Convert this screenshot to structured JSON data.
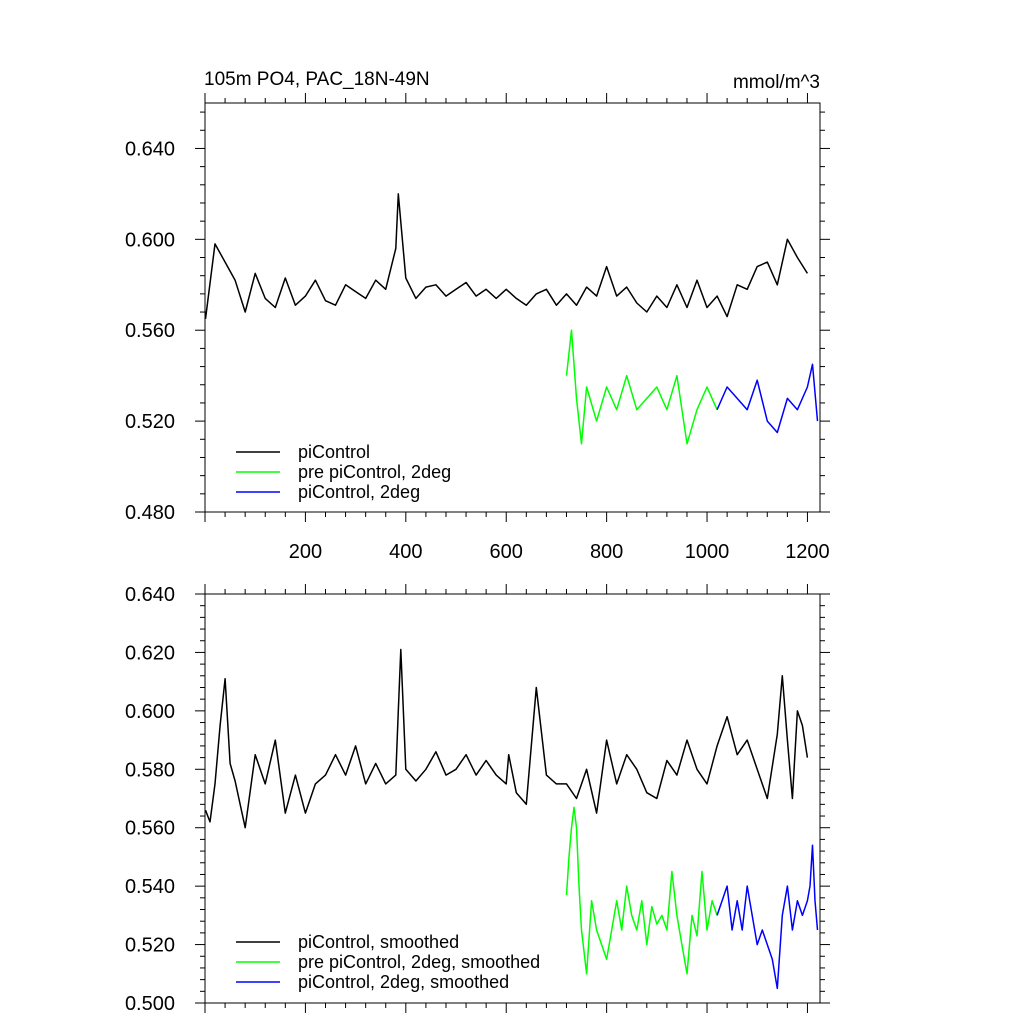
{
  "header": {
    "title": "105m PO4, PAC_18N-49N",
    "units": "mmol/m^3"
  },
  "chart_data": [
    {
      "type": "line",
      "xlim": [
        0,
        1225
      ],
      "ylim": [
        0.48,
        0.66
      ],
      "x_ticks": [
        200,
        400,
        600,
        800,
        1000,
        1200
      ],
      "x_tick_labels": [
        "200",
        "400",
        "600",
        "800",
        "1000",
        "1200"
      ],
      "y_ticks": [
        0.48,
        0.52,
        0.56,
        0.6,
        0.64
      ],
      "y_tick_labels": [
        "0.480",
        "0.520",
        "0.560",
        "0.600",
        "0.640"
      ],
      "legend_position": "bottom-left",
      "series": [
        {
          "name": "piControl",
          "color": "#000000",
          "x": [
            1,
            20,
            40,
            60,
            80,
            100,
            120,
            140,
            160,
            180,
            200,
            220,
            240,
            260,
            280,
            300,
            320,
            340,
            360,
            380,
            385,
            400,
            420,
            440,
            460,
            480,
            500,
            520,
            540,
            560,
            580,
            600,
            620,
            640,
            660,
            680,
            700,
            720,
            740,
            760,
            780,
            800,
            820,
            840,
            860,
            880,
            900,
            920,
            940,
            960,
            980,
            1000,
            1020,
            1040,
            1060,
            1080,
            1100,
            1120,
            1140,
            1160,
            1180,
            1200
          ],
          "y": [
            0.565,
            0.598,
            0.59,
            0.582,
            0.568,
            0.585,
            0.574,
            0.57,
            0.583,
            0.571,
            0.575,
            0.582,
            0.573,
            0.571,
            0.58,
            0.577,
            0.574,
            0.582,
            0.578,
            0.596,
            0.62,
            0.583,
            0.574,
            0.579,
            0.58,
            0.575,
            0.578,
            0.581,
            0.575,
            0.578,
            0.574,
            0.578,
            0.574,
            0.571,
            0.576,
            0.578,
            0.571,
            0.576,
            0.571,
            0.579,
            0.575,
            0.588,
            0.575,
            0.579,
            0.572,
            0.568,
            0.575,
            0.57,
            0.58,
            0.57,
            0.582,
            0.57,
            0.575,
            0.566,
            0.58,
            0.578,
            0.588,
            0.59,
            0.58,
            0.6,
            0.592,
            0.585
          ]
        },
        {
          "name": "pre piControl, 2deg",
          "color": "#00ff00",
          "x": [
            720,
            730,
            740,
            750,
            760,
            780,
            800,
            820,
            840,
            860,
            880,
            900,
            920,
            940,
            960,
            980,
            1000,
            1010,
            1020
          ],
          "y": [
            0.54,
            0.56,
            0.53,
            0.51,
            0.535,
            0.52,
            0.535,
            0.525,
            0.54,
            0.525,
            0.53,
            0.535,
            0.525,
            0.54,
            0.51,
            0.525,
            0.535,
            0.53,
            0.525
          ]
        },
        {
          "name": "piControl, 2deg",
          "color": "#0000ff",
          "x": [
            1020,
            1040,
            1060,
            1080,
            1100,
            1120,
            1140,
            1160,
            1180,
            1200,
            1210,
            1220
          ],
          "y": [
            0.525,
            0.535,
            0.53,
            0.525,
            0.538,
            0.52,
            0.515,
            0.53,
            0.525,
            0.535,
            0.545,
            0.52
          ]
        }
      ]
    },
    {
      "type": "line",
      "xlim": [
        0,
        1225
      ],
      "ylim": [
        0.5,
        0.64
      ],
      "x_ticks": [
        200,
        400,
        600,
        800,
        1000,
        1200
      ],
      "y_ticks": [
        0.5,
        0.52,
        0.54,
        0.56,
        0.58,
        0.6,
        0.62,
        0.64
      ],
      "y_tick_labels": [
        "0.500",
        "0.520",
        "0.540",
        "0.560",
        "0.580",
        "0.600",
        "0.620",
        "0.640"
      ],
      "legend_position": "bottom-left",
      "series": [
        {
          "name": "piControl, smoothed",
          "color": "#000000",
          "x": [
            1,
            10,
            20,
            30,
            40,
            50,
            60,
            80,
            100,
            120,
            140,
            160,
            180,
            200,
            220,
            240,
            260,
            280,
            300,
            320,
            340,
            360,
            380,
            385,
            390,
            400,
            420,
            440,
            460,
            480,
            500,
            520,
            540,
            560,
            580,
            600,
            605,
            620,
            640,
            660,
            680,
            700,
            720,
            740,
            760,
            780,
            800,
            820,
            840,
            860,
            880,
            900,
            920,
            940,
            960,
            980,
            1000,
            1020,
            1040,
            1060,
            1080,
            1100,
            1120,
            1140,
            1150,
            1160,
            1170,
            1180,
            1190,
            1200
          ],
          "y": [
            0.566,
            0.562,
            0.575,
            0.595,
            0.611,
            0.582,
            0.576,
            0.56,
            0.585,
            0.575,
            0.59,
            0.565,
            0.578,
            0.565,
            0.575,
            0.578,
            0.585,
            0.578,
            0.588,
            0.575,
            0.582,
            0.575,
            0.578,
            0.6,
            0.621,
            0.58,
            0.576,
            0.58,
            0.586,
            0.578,
            0.58,
            0.585,
            0.578,
            0.583,
            0.578,
            0.575,
            0.585,
            0.572,
            0.568,
            0.608,
            0.578,
            0.575,
            0.575,
            0.57,
            0.58,
            0.565,
            0.59,
            0.575,
            0.585,
            0.58,
            0.572,
            0.57,
            0.583,
            0.578,
            0.59,
            0.58,
            0.575,
            0.588,
            0.598,
            0.585,
            0.59,
            0.58,
            0.57,
            0.592,
            0.612,
            0.59,
            0.57,
            0.6,
            0.595,
            0.584
          ]
        },
        {
          "name": "pre piControl, 2deg, smoothed",
          "color": "#00ff00",
          "x": [
            720,
            725,
            730,
            735,
            740,
            745,
            750,
            760,
            770,
            780,
            790,
            800,
            810,
            820,
            830,
            840,
            850,
            860,
            870,
            880,
            890,
            900,
            910,
            920,
            930,
            940,
            950,
            960,
            970,
            980,
            990,
            1000,
            1010,
            1020
          ],
          "y": [
            0.537,
            0.55,
            0.56,
            0.567,
            0.56,
            0.54,
            0.525,
            0.51,
            0.535,
            0.525,
            0.52,
            0.515,
            0.525,
            0.535,
            0.525,
            0.54,
            0.53,
            0.525,
            0.535,
            0.52,
            0.533,
            0.527,
            0.53,
            0.525,
            0.545,
            0.53,
            0.52,
            0.51,
            0.53,
            0.523,
            0.545,
            0.525,
            0.535,
            0.53
          ]
        },
        {
          "name": "piControl, 2deg, smoothed",
          "color": "#0000ff",
          "x": [
            1020,
            1030,
            1040,
            1050,
            1060,
            1070,
            1080,
            1090,
            1100,
            1110,
            1120,
            1130,
            1140,
            1150,
            1160,
            1170,
            1180,
            1190,
            1200,
            1205,
            1210,
            1215,
            1220
          ],
          "y": [
            0.53,
            0.535,
            0.54,
            0.525,
            0.535,
            0.525,
            0.54,
            0.53,
            0.52,
            0.525,
            0.52,
            0.515,
            0.505,
            0.53,
            0.54,
            0.525,
            0.535,
            0.53,
            0.535,
            0.54,
            0.554,
            0.535,
            0.525
          ]
        }
      ]
    }
  ]
}
